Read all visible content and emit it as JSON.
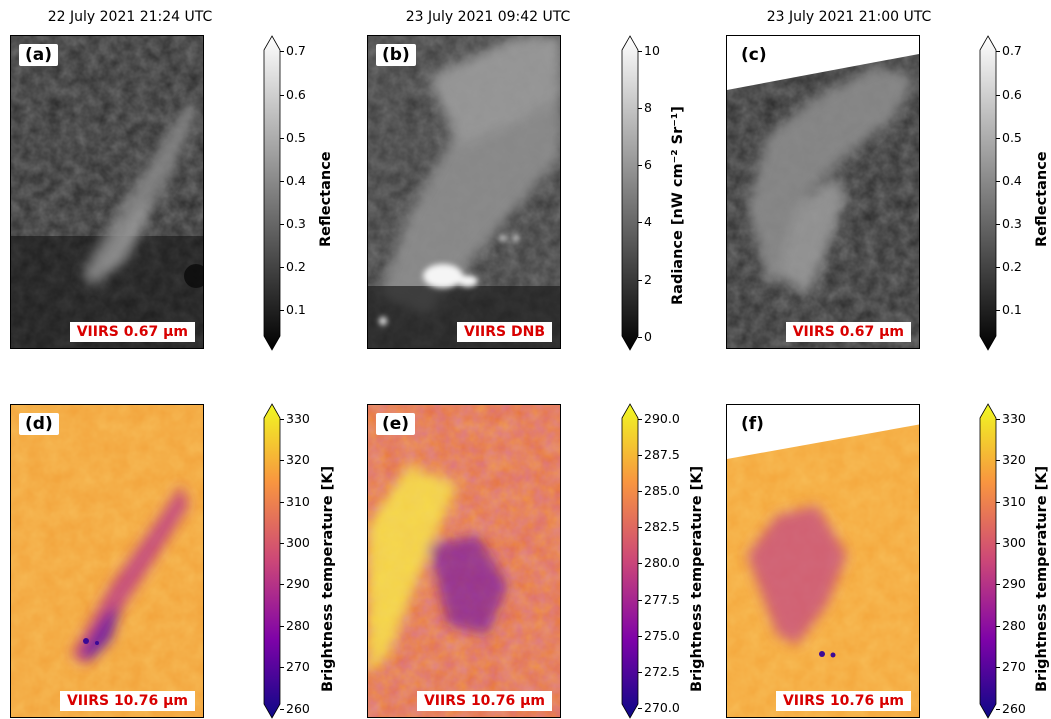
{
  "columns": [
    {
      "title": "22 July 2021 21:24 UTC"
    },
    {
      "title": "23 July 2021 09:42 UTC"
    },
    {
      "title": "23 July 2021 21:00 UTC"
    }
  ],
  "panels": {
    "a": {
      "label": "(a)",
      "instrument": "VIIRS 0.67 µm"
    },
    "b": {
      "label": "(b)",
      "instrument": "VIIRS DNB"
    },
    "c": {
      "label": "(c)",
      "instrument": "VIIRS 0.67 µm"
    },
    "d": {
      "label": "(d)",
      "instrument": "VIIRS 10.76 µm"
    },
    "e": {
      "label": "(e)",
      "instrument": "VIIRS 10.76 µm"
    },
    "f": {
      "label": "(f)",
      "instrument": "VIIRS 10.76 µm"
    }
  },
  "colorbars": {
    "reflectance": {
      "label": "Reflectance",
      "ticks": [
        "0.7",
        "0.6",
        "0.5",
        "0.4",
        "0.3",
        "0.2",
        "0.1"
      ],
      "colormap": "greys"
    },
    "radiance": {
      "label": "Radiance [nW cm⁻² Sr⁻¹]",
      "ticks": [
        "10",
        "8",
        "6",
        "4",
        "2",
        "0"
      ],
      "colormap": "greys"
    },
    "bt_day": {
      "label": "Brightness temperature [K]",
      "ticks": [
        "330",
        "320",
        "310",
        "300",
        "290",
        "280",
        "270",
        "260"
      ],
      "colormap": "plasma"
    },
    "bt_night": {
      "label": "Brightness temperature [K]",
      "ticks": [
        "290.0",
        "287.5",
        "285.0",
        "282.5",
        "280.0",
        "277.5",
        "275.0",
        "272.5",
        "270.0"
      ],
      "colormap": "plasma"
    }
  },
  "colors": {
    "instrument_text": "#d80000",
    "plasma_low": "#0d0887",
    "plasma_high": "#f0f921"
  }
}
